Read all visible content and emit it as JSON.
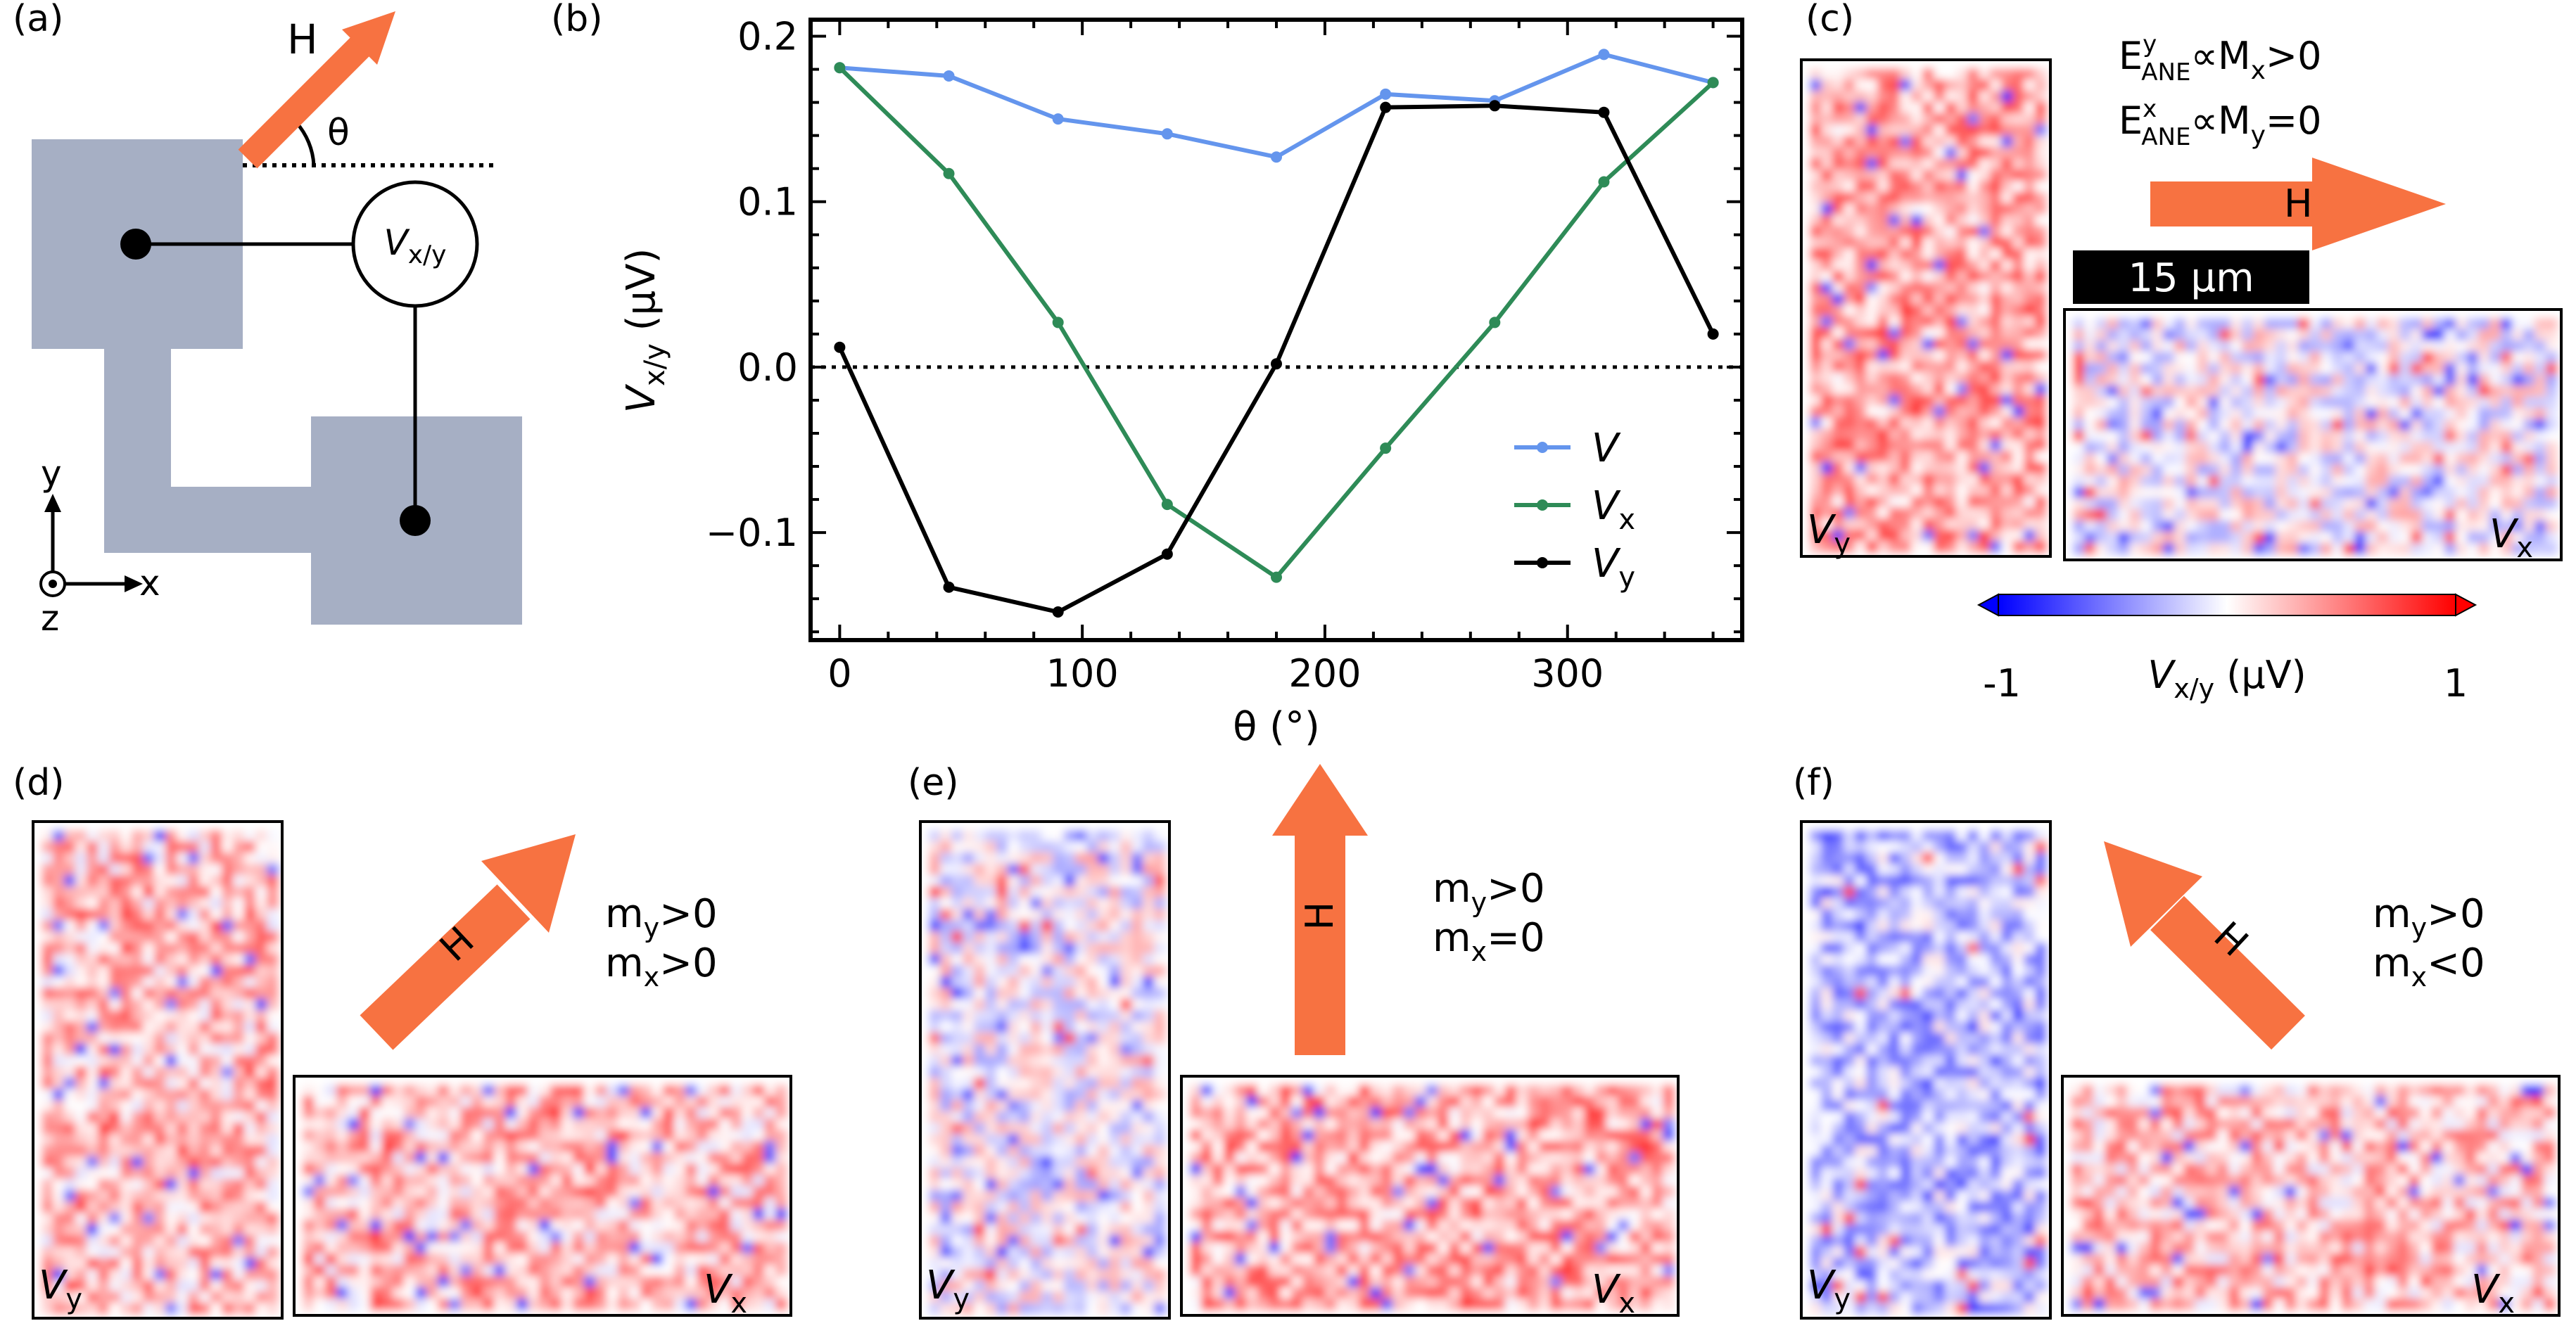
{
  "panels": {
    "a": {
      "label": "(a)",
      "field_label": "H",
      "angle_label": "θ",
      "voltmeter_symbol": "V",
      "voltmeter_sub": "x/y",
      "axis_y": "y",
      "axis_x": "x",
      "axis_z": "z"
    },
    "b": {
      "label": "(b)"
    },
    "c": {
      "label": "(c)",
      "eq1_main": "E",
      "eq1_sup": "y",
      "eq1_sub": "ANE",
      "eq1_rest": "∝M",
      "eq1_rest_sub": "x",
      "eq1_tail": ">0",
      "eq2_main": "E",
      "eq2_sup": "x",
      "eq2_sub": "ANE",
      "eq2_rest": "∝M",
      "eq2_rest_sub": "y",
      "eq2_tail": "=0",
      "field_label": "H",
      "scalebar_label": "15 μm",
      "map_vy_symbol": "V",
      "map_vy_sub": "y",
      "map_vx_symbol": "V",
      "map_vx_sub": "x",
      "colorbar_min": "-1",
      "colorbar_max": "1",
      "colorbar_label_symbol": "V",
      "colorbar_label_sub": "x/y",
      "colorbar_label_unit": " (μV)",
      "colors": {
        "neg": "#0000ff",
        "mid": "#ffffff",
        "pos": "#ff0000"
      }
    },
    "d": {
      "label": "(d)",
      "field_label": "H",
      "cond1_m": "m",
      "cond1_sub": "y",
      "cond1_rel": ">0",
      "cond2_m": "m",
      "cond2_sub": "x",
      "cond2_rel": ">0",
      "map_vy_symbol": "V",
      "map_vy_sub": "y",
      "map_vx_symbol": "V",
      "map_vx_sub": "x"
    },
    "e": {
      "label": "(e)",
      "field_label": "H",
      "cond1_m": "m",
      "cond1_sub": "y",
      "cond1_rel": ">0",
      "cond2_m": "m",
      "cond2_sub": "x",
      "cond2_rel": "=0",
      "map_vy_symbol": "V",
      "map_vy_sub": "y",
      "map_vx_symbol": "V",
      "map_vx_sub": "x"
    },
    "f": {
      "label": "(f)",
      "field_label": "H",
      "cond1_m": "m",
      "cond1_sub": "y",
      "cond1_rel": ">0",
      "cond2_m": "m",
      "cond2_sub": "x",
      "cond2_rel": "<0",
      "map_vy_symbol": "V",
      "map_vy_sub": "y",
      "map_vx_symbol": "V",
      "map_vx_sub": "x"
    }
  },
  "colors": {
    "arrow": "#f77241",
    "device": "#a6afc4"
  },
  "chart_data": {
    "type": "line",
    "xlabel": "θ (°)",
    "ylabel_symbol": "V",
    "ylabel_sub": "x/y",
    "ylabel_unit": " (μV)",
    "xlim": [
      -12,
      372
    ],
    "ylim": [
      -0.165,
      0.21
    ],
    "xticks": [
      0,
      100,
      200,
      300
    ],
    "xtick_labels": [
      "0",
      "100",
      "200",
      "300"
    ],
    "yticks": [
      -0.1,
      0.0,
      0.1,
      0.2
    ],
    "ytick_labels": [
      "−0.1",
      "0.0",
      "0.1",
      "0.2"
    ],
    "zero_line": true,
    "legend_position": "lower-right",
    "x": [
      0,
      45,
      90,
      135,
      180,
      225,
      270,
      315,
      360
    ],
    "series": [
      {
        "name": "V",
        "name_sub": "",
        "color": "#6495ed",
        "values": [
          0.181,
          0.176,
          0.15,
          0.141,
          0.127,
          0.165,
          0.161,
          0.189,
          0.172
        ]
      },
      {
        "name": "V",
        "name_sub": "x",
        "color": "#2e8b57",
        "values": [
          0.181,
          0.117,
          0.027,
          -0.083,
          -0.127,
          -0.049,
          0.027,
          0.112,
          0.172
        ]
      },
      {
        "name": "V",
        "name_sub": "y",
        "color": "#000000",
        "values": [
          0.012,
          -0.133,
          -0.148,
          -0.113,
          0.002,
          0.157,
          0.158,
          0.154,
          0.02
        ]
      }
    ]
  }
}
